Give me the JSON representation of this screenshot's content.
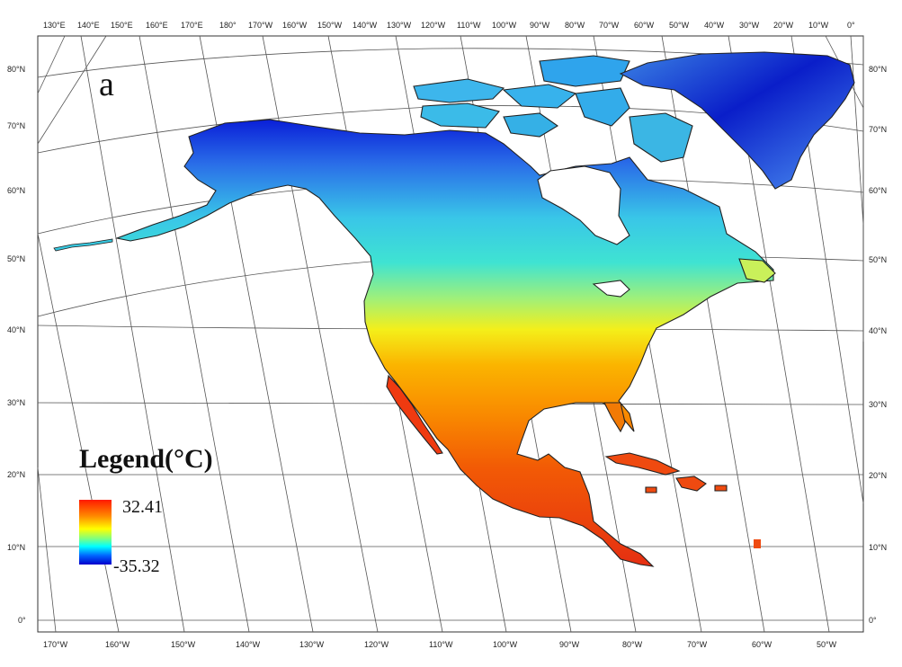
{
  "panel_label": "a",
  "legend": {
    "title": "Legend(°C)",
    "max_label": "32.41",
    "min_label": "-35.32",
    "max_value": 32.41,
    "min_value": -35.32,
    "colors": [
      "#ff1a00",
      "#ff8800",
      "#ffff00",
      "#7fff7f",
      "#00ffff",
      "#0066ff",
      "#0000cc"
    ]
  },
  "top_lon_labels": [
    "130°E",
    "140°E",
    "150°E",
    "160°E",
    "170°E",
    "180°",
    "170°W",
    "160°W",
    "150°W",
    "140°W",
    "130°W",
    "120°W",
    "110°W",
    "100°W",
    "90°W",
    "80°W",
    "70°W",
    "60°W",
    "50°W",
    "40°W",
    "30°W",
    "20°W",
    "10°W",
    "0°"
  ],
  "bottom_lon_labels": [
    "170°W",
    "160°W",
    "150°W",
    "140°W",
    "130°W",
    "120°W",
    "110°W",
    "100°W",
    "90°W",
    "80°W",
    "70°W",
    "60°W",
    "50°W"
  ],
  "lat_labels": [
    "80°N",
    "70°N",
    "60°N",
    "50°N",
    "40°N",
    "30°N",
    "20°N",
    "10°N",
    "0°"
  ],
  "land_color": "#ffffff",
  "gridline_color": "#555555"
}
